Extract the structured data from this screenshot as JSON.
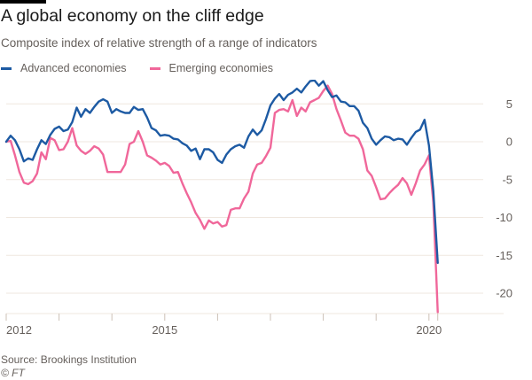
{
  "header": {
    "title": "A global economy on the cliff edge",
    "subtitle": "Composite index of relative strength of a range of indicators"
  },
  "footer": {
    "source": "Source: Brookings Institution",
    "credit": "© FT"
  },
  "colors": {
    "advanced": "#1d5aa3",
    "emerging": "#f0679a",
    "grid": "#efe7df",
    "axis": "#ccc1b7",
    "text": "#66605c"
  },
  "chart_data": {
    "type": "line",
    "title": "A global economy on the cliff edge",
    "subtitle": "Composite index of relative strength of a range of indicators",
    "xlabel": "",
    "ylabel": "",
    "x_start": 2012.0,
    "x_step_years": 0.08333,
    "xlim": [
      2012.0,
      2020.2
    ],
    "ylim": [
      -22.5,
      7.5
    ],
    "x_ticks": [
      2012,
      2013,
      2014,
      2015,
      2016,
      2017,
      2018,
      2019,
      2020
    ],
    "x_tick_labels": [
      "2012",
      "",
      "",
      "2015",
      "",
      "",
      "",
      "",
      "2020"
    ],
    "y_ticks": [
      5,
      0,
      -5,
      -10,
      -15,
      -20
    ],
    "y_tick_labels": [
      "5",
      "0",
      "-5",
      "-10",
      "-15",
      "-20"
    ],
    "y_axis_side": "right",
    "grid": true,
    "legend": "top-left",
    "series": [
      {
        "name": "Advanced economies",
        "color": "#1d5aa3",
        "values": [
          0,
          0.8,
          0.2,
          -1.0,
          -2.6,
          -2.2,
          -2.4,
          -1.0,
          0.2,
          -0.3,
          0.9,
          1.7,
          2.0,
          1.4,
          1.6,
          2.6,
          4.5,
          3.3,
          4.3,
          3.8,
          4.6,
          5.3,
          5.6,
          5.3,
          3.8,
          4.3,
          4.0,
          3.8,
          3.8,
          4.6,
          4.2,
          4.3,
          3.2,
          1.8,
          1.5,
          0.8,
          0.9,
          0.8,
          0.4,
          0.3,
          -0.2,
          -0.5,
          -1.2,
          -0.9,
          -2.3,
          -1.0,
          -1.0,
          -1.4,
          -2.4,
          -2.8,
          -1.7,
          -1.0,
          -0.6,
          -0.4,
          -0.8,
          0.7,
          1.6,
          0.9,
          1.5,
          3.0,
          4.8,
          5.7,
          6.3,
          5.5,
          6.2,
          6.5,
          7.0,
          6.5,
          7.3,
          8.0,
          8.1,
          7.4,
          8.0,
          6.8,
          5.9,
          6.1,
          5.3,
          5.2,
          4.7,
          4.7,
          4.1,
          2.5,
          1.8,
          0.4,
          -0.4,
          0.2,
          0.7,
          0.6,
          0.2,
          0.4,
          0.3,
          -0.4,
          0.5,
          1.3,
          1.6,
          2.9,
          -0.5,
          -6.5,
          -16.0
        ]
      },
      {
        "name": "Emerging economies",
        "color": "#f0679a",
        "values": [
          0,
          0.1,
          -1.8,
          -4.0,
          -5.4,
          -5.6,
          -5.2,
          -4.2,
          -1.4,
          -2.3,
          0.5,
          0.2,
          -1.1,
          -1.0,
          0.0,
          1.8,
          -0.5,
          -1.2,
          -1.6,
          -1.2,
          -0.6,
          -0.9,
          -1.7,
          -4.0,
          -4.0,
          -4.0,
          -4.0,
          -3.0,
          -0.3,
          0.0,
          1.4,
          0.0,
          -1.8,
          -2.1,
          -2.5,
          -3.0,
          -2.8,
          -3.2,
          -4.1,
          -4.0,
          -5.5,
          -6.8,
          -8.0,
          -9.4,
          -10.3,
          -11.5,
          -10.4,
          -10.8,
          -10.6,
          -11.2,
          -11.0,
          -9.0,
          -8.8,
          -8.8,
          -7.5,
          -6.6,
          -4.2,
          -3.0,
          -2.8,
          -1.9,
          -0.8,
          3.8,
          4.2,
          4.3,
          4.0,
          5.5,
          3.4,
          4.5,
          4.0,
          5.2,
          5.5,
          5.8,
          6.7,
          7.4,
          6.3,
          4.3,
          2.8,
          1.2,
          0.8,
          0.8,
          0.4,
          -1.0,
          -3.8,
          -4.5,
          -6.0,
          -7.6,
          -7.5,
          -6.8,
          -6.2,
          -5.7,
          -4.8,
          -5.5,
          -7.0,
          -5.5,
          -3.8,
          -3.0,
          -1.8,
          -8.0,
          -22.5
        ]
      }
    ]
  }
}
